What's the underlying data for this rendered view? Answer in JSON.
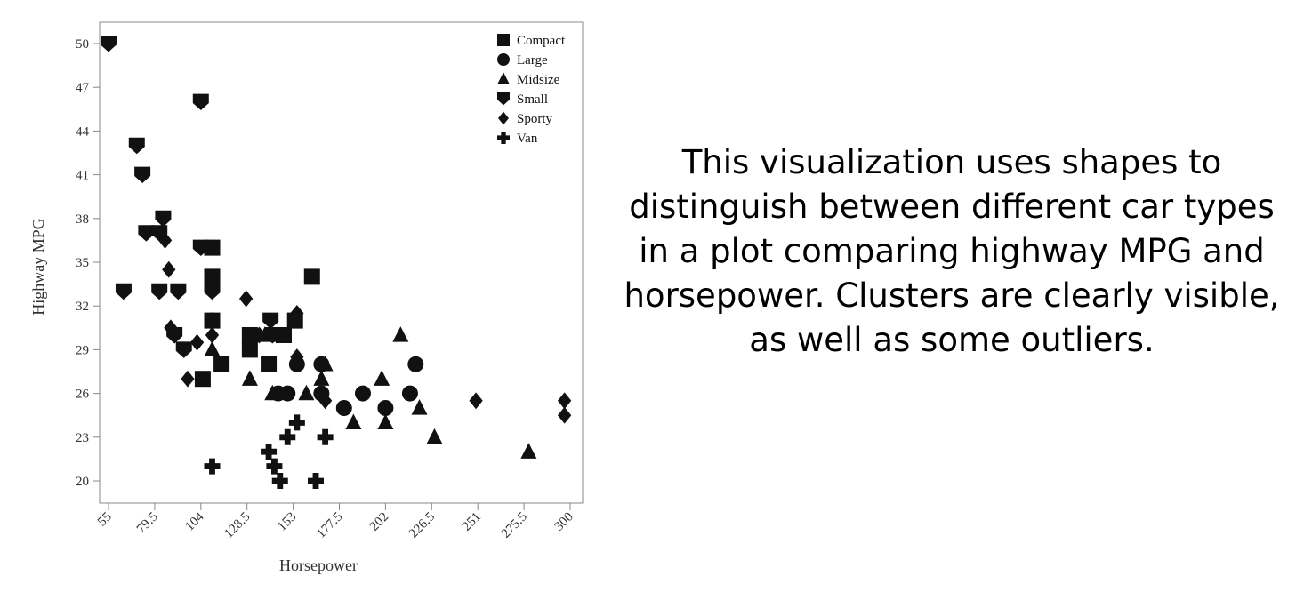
{
  "caption": "This visualization uses shapes to distinguish between different car types in a plot comparing highway MPG and horsepower. Clusters are clearly visible, as well as some outliers.",
  "chart_data": {
    "type": "scatter",
    "title": "",
    "xlabel": "Horsepower",
    "ylabel": "Highway MPG",
    "xlim": [
      55,
      300
    ],
    "ylim": [
      20,
      50
    ],
    "x_ticks": [
      "55",
      "79.5",
      "104",
      "128.5",
      "153",
      "177.5",
      "202",
      "226.5",
      "251",
      "275.5",
      "300"
    ],
    "y_ticks": [
      "20",
      "23",
      "26",
      "29",
      "32",
      "35",
      "38",
      "41",
      "44",
      "47",
      "50"
    ],
    "grid": false,
    "legend_position": "top-right",
    "series": [
      {
        "name": "Compact",
        "marker": "square",
        "points": [
          [
            110,
            36
          ],
          [
            110,
            34
          ],
          [
            110,
            31
          ],
          [
            105,
            27
          ],
          [
            115,
            28
          ],
          [
            130,
            30
          ],
          [
            130,
            29
          ],
          [
            140,
            28
          ],
          [
            148,
            30
          ],
          [
            154,
            31
          ],
          [
            163,
            34
          ]
        ]
      },
      {
        "name": "Large",
        "marker": "circle",
        "points": [
          [
            145,
            26
          ],
          [
            150,
            26
          ],
          [
            155,
            28
          ],
          [
            168,
            28
          ],
          [
            168,
            26
          ],
          [
            180,
            25
          ],
          [
            190,
            26
          ],
          [
            202,
            25
          ],
          [
            215,
            26
          ],
          [
            218,
            28
          ]
        ]
      },
      {
        "name": "Midsize",
        "marker": "triangle",
        "points": [
          [
            110,
            29
          ],
          [
            130,
            27
          ],
          [
            138,
            30
          ],
          [
            142,
            26
          ],
          [
            145,
            30
          ],
          [
            160,
            26
          ],
          [
            168,
            27
          ],
          [
            170,
            28
          ],
          [
            185,
            24
          ],
          [
            200,
            27
          ],
          [
            202,
            24
          ],
          [
            210,
            30
          ],
          [
            220,
            25
          ],
          [
            228,
            23
          ],
          [
            278,
            22
          ]
        ]
      },
      {
        "name": "Small",
        "marker": "shield",
        "points": [
          [
            55,
            50
          ],
          [
            63,
            33
          ],
          [
            70,
            43
          ],
          [
            73,
            41
          ],
          [
            75,
            37
          ],
          [
            82,
            37
          ],
          [
            82,
            33
          ],
          [
            84,
            38
          ],
          [
            92,
            33
          ],
          [
            90,
            30
          ],
          [
            95,
            29
          ],
          [
            104,
            46
          ],
          [
            104,
            36
          ],
          [
            110,
            33
          ],
          [
            141,
            31
          ],
          [
            142,
            30
          ]
        ]
      },
      {
        "name": "Sporty",
        "marker": "diamond",
        "points": [
          [
            85,
            36.5
          ],
          [
            87,
            34.5
          ],
          [
            88,
            30.5
          ],
          [
            97,
            27
          ],
          [
            102,
            29.5
          ],
          [
            110,
            31
          ],
          [
            110,
            30
          ],
          [
            128,
            32.5
          ],
          [
            135,
            30
          ],
          [
            155,
            31.5
          ],
          [
            155,
            28.5
          ],
          [
            170,
            25.5
          ],
          [
            250,
            25.5
          ],
          [
            297,
            25.5
          ],
          [
            297,
            24.5
          ]
        ]
      },
      {
        "name": "Van",
        "marker": "cross",
        "points": [
          [
            110,
            21
          ],
          [
            140,
            22
          ],
          [
            143,
            21
          ],
          [
            146,
            20
          ],
          [
            150,
            23
          ],
          [
            155,
            24
          ],
          [
            165,
            20
          ],
          [
            170,
            23
          ]
        ]
      }
    ]
  }
}
